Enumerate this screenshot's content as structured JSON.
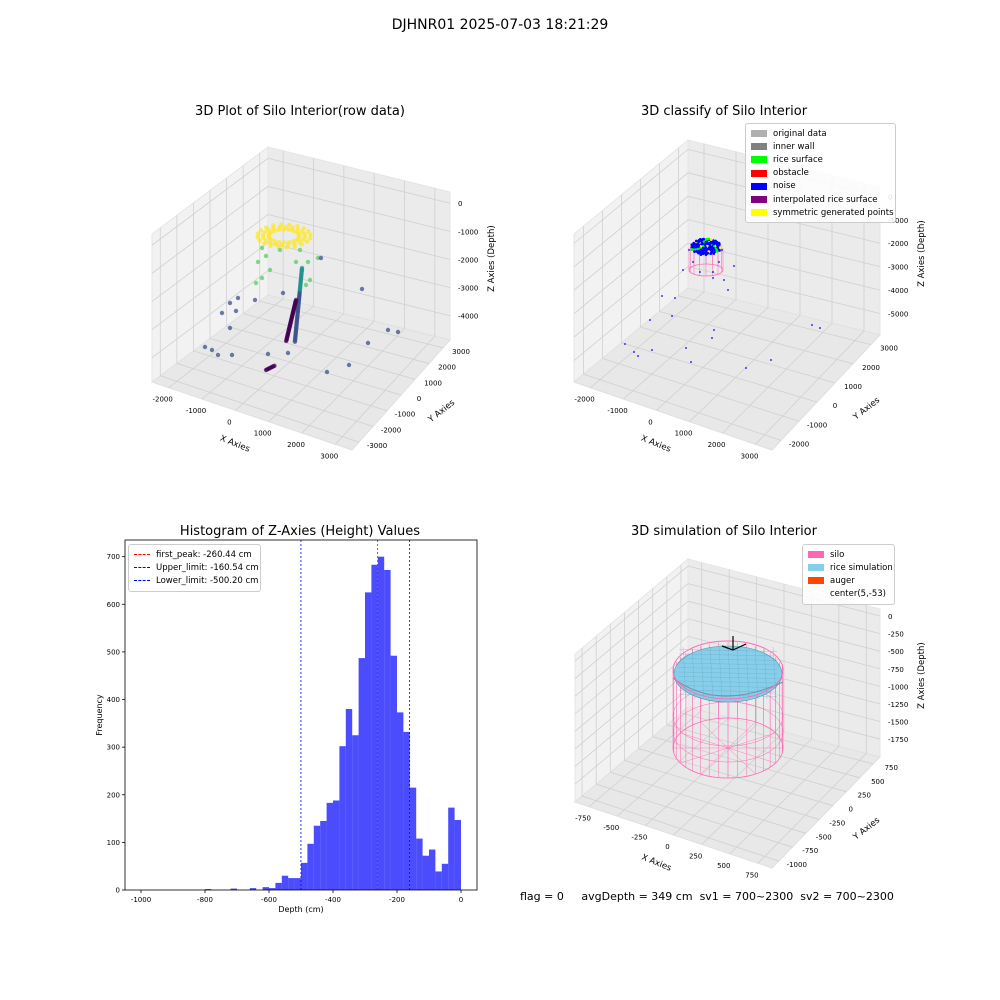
{
  "suptitle": "DJHNR01 2025-07-03 18:21:29",
  "chart_data": [
    {
      "type": "scatter3d",
      "title": "3D Plot of Silo Interior(row data)",
      "xlabel": "X Axies",
      "ylabel": "Y Axies",
      "zlabel": "Z Axies (Depth)",
      "xticks": [
        -2000,
        -1000,
        0,
        1000,
        2000,
        3000
      ],
      "yticks": [
        -3000,
        -2000,
        -1000,
        0,
        1000,
        2000,
        3000
      ],
      "zticks": [
        0,
        -1000,
        -2000,
        -3000,
        -4000
      ],
      "colormap": [
        "#440154",
        "#3b528b",
        "#21918c",
        "#5ec962",
        "#fde725"
      ]
    },
    {
      "type": "scatter3d",
      "title": "3D classify of Silo Interior",
      "xlabel": "X Axies",
      "ylabel": "Y Axies",
      "zlabel": "Z Axies (Depth)",
      "xticks": [
        -2000,
        -1000,
        0,
        1000,
        2000,
        3000
      ],
      "yticks": [
        -2000,
        -1000,
        0,
        1000,
        2000,
        3000
      ],
      "zticks": [
        0,
        -1000,
        -2000,
        -3000,
        -4000,
        -5000
      ],
      "legend": [
        {
          "label": "original data",
          "color": "#b0b0b0"
        },
        {
          "label": "inner wall",
          "color": "#808080"
        },
        {
          "label": "rice surface",
          "color": "#00ff00"
        },
        {
          "label": "obstacle",
          "color": "#ff0000"
        },
        {
          "label": "noise",
          "color": "#0000ff"
        },
        {
          "label": "interpolated rice surface",
          "color": "#800080"
        },
        {
          "label": "symmetric generated points",
          "color": "#ffff00"
        }
      ]
    },
    {
      "type": "bar",
      "title": "Histogram of Z-Axies (Height) Values",
      "xlabel": "Depth (cm)",
      "ylabel": "Frequency",
      "xlim": [
        -1050,
        50
      ],
      "ylim": [
        0,
        735
      ],
      "xticks": [
        -1000,
        -800,
        -600,
        -400,
        -200,
        0
      ],
      "yticks": [
        0,
        100,
        200,
        300,
        400,
        500,
        600,
        700
      ],
      "bar_color": "#0000ff",
      "bins": {
        "start": -500,
        "width": 20,
        "values": [
          57,
          97,
          135,
          145,
          183,
          188,
          302,
          380,
          325,
          487,
          625,
          683,
          700,
          672,
          492,
          373,
          332,
          215,
          108,
          72,
          85,
          39,
          55,
          173,
          147
        ]
      },
      "left_tail": [
        {
          "x": -800,
          "v": 2
        },
        {
          "x": -720,
          "v": 3
        },
        {
          "x": -660,
          "v": 4
        },
        {
          "x": -620,
          "v": 6
        },
        {
          "x": -600,
          "v": 4
        },
        {
          "x": -580,
          "v": 15
        },
        {
          "x": -560,
          "v": 30
        },
        {
          "x": -540,
          "v": 25
        },
        {
          "x": -520,
          "v": 25
        }
      ],
      "vlines": [
        {
          "label": "first_peak: -260.44 cm",
          "x": -260.44,
          "color": "#ff0000"
        },
        {
          "label": "Upper_limit: -160.54 cm",
          "x": -160.54,
          "color": "#0000ff"
        },
        {
          "label": "Lower_limit: -500.20 cm",
          "x": -500.2,
          "color": "#0000ff"
        }
      ]
    },
    {
      "type": "surface3d",
      "title": "3D simulation of Silo Interior",
      "xlabel": "X Axies",
      "ylabel": "Y Axies",
      "zlabel": "Z Axies (Depth)",
      "xticks": [
        -750,
        -500,
        -250,
        0,
        250,
        500,
        750
      ],
      "yticks": [
        -1000,
        -750,
        -500,
        -250,
        0,
        250,
        500,
        750
      ],
      "zticks": [
        0,
        -250,
        -500,
        -750,
        -1000,
        -1250,
        -1500,
        -1750
      ],
      "legend": [
        {
          "label": "silo",
          "color": "#ff69b4"
        },
        {
          "label": "rice simulation",
          "color": "#87ceeb"
        },
        {
          "label": "auger",
          "color": "#ff4500"
        },
        {
          "label": "center(5,-53)",
          "color": ""
        }
      ]
    }
  ],
  "footer": {
    "flag": "flag = 0",
    "avg_depth": "avgDepth = 349 cm",
    "sv1": "sv1 = 700~2300",
    "sv2": "sv2 = 700~2300"
  }
}
